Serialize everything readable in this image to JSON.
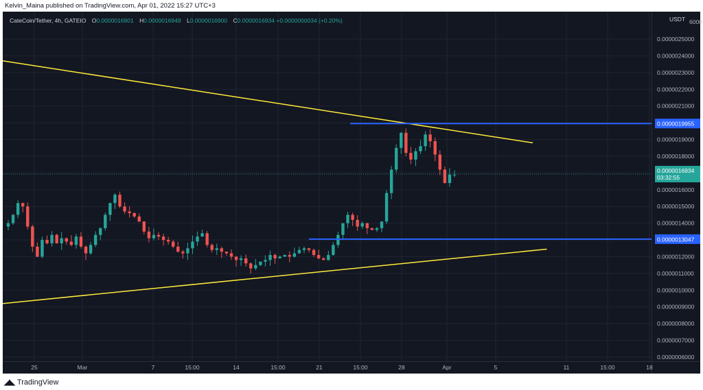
{
  "published_by": "Kelvin_Maina published on TradingView.com, Apr 01, 2022 15:27 UTC+3",
  "symbol_line": {
    "name": "CateCoin/Tether, 4h, GATEIO",
    "open_label": "O",
    "open": "0.0000016901",
    "high_label": "H",
    "high": "0.0000016949",
    "low_label": "L",
    "low": "0.0000016900",
    "close_label": "C",
    "close": "0.0000016934",
    "change": "+0.0000000034 (+0.20%)"
  },
  "currency": "USDT",
  "price_marker": {
    "value": "0.0000016934",
    "countdown": "03:32:55"
  },
  "footer_brand": "TradingView",
  "colors": {
    "background": "#131722",
    "up": "#26a69a",
    "down": "#ef5350",
    "trendline": "#ffeb3b",
    "level": "#2962ff"
  },
  "chart_data": {
    "type": "candlestick",
    "ylim": [
      6e-07,
      2.6e-06
    ],
    "y_ticks": [
      "0.0000025000",
      "0.0000024000",
      "0.0000023000",
      "0.0000022000",
      "0.0000021000",
      "0.0000019000",
      "0.0000018000",
      "0.0000016000",
      "0.0000015000",
      "0.0000014000",
      "0.0000012000",
      "0.0000011000",
      "0.0000010000",
      "0.0000009000",
      "0.0000008000",
      "0.0000007000",
      "0.0000006000"
    ],
    "y_tick_top_partial": "0.0000026000",
    "x_ticks": [
      "25",
      "Mar",
      "7",
      "15:00",
      "14",
      "15:00",
      "21",
      "15:00",
      "28",
      "Apr",
      "5",
      "11",
      "15:00",
      "18"
    ],
    "horizontal_levels": [
      {
        "price": 1.9955e-06,
        "label": "0.0000019955"
      },
      {
        "price": 1.3047e-06,
        "label": "0.0000013047"
      }
    ],
    "trendlines": [
      {
        "name": "descending resistance",
        "from": [
          0,
          2.37e-06
        ],
        "to": [
          0.76,
          1.88e-06
        ]
      },
      {
        "name": "ascending support",
        "from": [
          0,
          9.2e-07
        ],
        "to": [
          0.78,
          1.245e-06
        ]
      }
    ],
    "series": [
      {
        "name": "CateCoin/Tether",
        "closes": [
          1.4e-06,
          1.45e-06,
          1.52e-06,
          1.5e-06,
          1.38e-06,
          1.26e-06,
          1.2e-06,
          1.3e-06,
          1.28e-06,
          1.33e-06,
          1.28e-06,
          1.31e-06,
          1.29e-06,
          1.27e-06,
          1.32e-06,
          1.26e-06,
          1.22e-06,
          1.27e-06,
          1.33e-06,
          1.37e-06,
          1.45e-06,
          1.52e-06,
          1.57e-06,
          1.5e-06,
          1.47e-06,
          1.46e-06,
          1.44e-06,
          1.41e-06,
          1.35e-06,
          1.31e-06,
          1.33e-06,
          1.32e-06,
          1.3e-06,
          1.29e-06,
          1.26e-06,
          1.23e-06,
          1.22e-06,
          1.25e-06,
          1.29e-06,
          1.32e-06,
          1.34e-06,
          1.27e-06,
          1.24e-06,
          1.25e-06,
          1.23e-06,
          1.22e-06,
          1.2e-06,
          1.18e-06,
          1.19e-06,
          1.16e-06,
          1.13e-06,
          1.15e-06,
          1.17e-06,
          1.18e-06,
          1.21e-06,
          1.19e-06,
          1.2e-06,
          1.21e-06,
          1.2e-06,
          1.22e-06,
          1.24e-06,
          1.25e-06,
          1.24e-06,
          1.21e-06,
          1.19e-06,
          1.18e-06,
          1.21e-06,
          1.27e-06,
          1.33e-06,
          1.4e-06,
          1.45e-06,
          1.42e-06,
          1.38e-06,
          1.4e-06,
          1.37e-06,
          1.36e-06,
          1.37e-06,
          1.41e-06,
          1.58e-06,
          1.72e-06,
          1.85e-06,
          1.94e-06,
          1.82e-06,
          1.78e-06,
          1.83e-06,
          1.86e-06,
          1.93e-06,
          1.89e-06,
          1.81e-06,
          1.72e-06,
          1.64e-06,
          1.69e-06,
          1.69e-06
        ]
      }
    ]
  }
}
